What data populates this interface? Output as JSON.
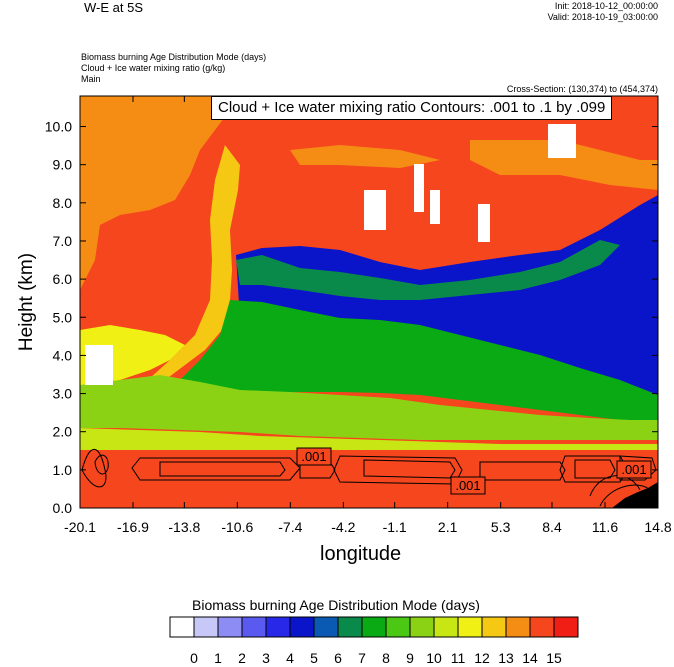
{
  "header": {
    "title": "W-E at 5S",
    "init": "Init: 2018-10-12_00:00:00",
    "valid": "Valid: 2018-10-19_03:00:00",
    "field1": "Biomass burning Age Distribution Mode    (days)",
    "field2": "Cloud + Ice water mixing ratio    (g/kg)",
    "field3": "Main",
    "cross_section": "Cross-Section: (130,374) to (454,374)"
  },
  "chart_data": {
    "type": "heatmap",
    "title": "Cloud + Ice water mixing ratio Contours: .001 to .1 by .099",
    "xlabel": "longitude",
    "ylabel": "Height (km)",
    "xlim": [
      -20.1,
      14.8
    ],
    "ylim": [
      0.0,
      10.8
    ],
    "x_ticks": [
      "-20.1",
      "-16.9",
      "-13.8",
      "-10.6",
      "-7.4",
      "-4.2",
      "-1.1",
      "2.1",
      "5.3",
      "8.4",
      "11.6",
      "14.8"
    ],
    "y_ticks": [
      "0.0",
      "1.0",
      "2.0",
      "3.0",
      "4.0",
      "5.0",
      "6.0",
      "7.0",
      "8.0",
      "9.0",
      "10.0"
    ],
    "contour_levels": [
      0.001,
      0.1
    ],
    "contour_labels": [
      ".001",
      ".001",
      ".001"
    ],
    "regions": [
      {
        "value": 14,
        "description": "upper orange west",
        "lon": [
          -20.1,
          -15.0
        ],
        "height": [
          7.5,
          10.8
        ]
      },
      {
        "value": 15,
        "description": "upper red",
        "lon": [
          -15.0,
          14.8
        ],
        "height": [
          6.5,
          10.8
        ]
      },
      {
        "value": 13,
        "description": "yellow plume",
        "lon": [
          -12.0,
          -10.0
        ],
        "height": [
          3.5,
          9.5
        ]
      },
      {
        "value": 5,
        "description": "blue east",
        "lon": [
          -10.5,
          14.8
        ],
        "height": [
          4.5,
          7.0
        ]
      },
      {
        "value": 8,
        "description": "green mid",
        "lon": [
          -20.1,
          14.8
        ],
        "height": [
          2.3,
          4.5
        ]
      },
      {
        "value": 10,
        "description": "light green lower",
        "lon": [
          -20.1,
          5.0
        ],
        "height": [
          1.5,
          3.0
        ]
      },
      {
        "value": 15,
        "description": "boundary layer red",
        "lon": [
          -20.1,
          14.8
        ],
        "height": [
          0.0,
          1.5
        ]
      }
    ]
  },
  "colorbar": {
    "title": "Biomass burning Age Distribution Mode  (days)",
    "labels": [
      "0",
      "1",
      "2",
      "3",
      "4",
      "5",
      "6",
      "7",
      "8",
      "9",
      "10",
      "11",
      "12",
      "13",
      "14",
      "15"
    ],
    "colors": [
      "#ffffff",
      "#c8c8f8",
      "#8c8cf4",
      "#5a5af0",
      "#2828e8",
      "#0a14c8",
      "#0a5ab4",
      "#0a8a4a",
      "#0aaa14",
      "#4ac814",
      "#8cd214",
      "#c8e614",
      "#f0f014",
      "#f5c814",
      "#f58c14",
      "#f5461e",
      "#f01e14"
    ]
  }
}
